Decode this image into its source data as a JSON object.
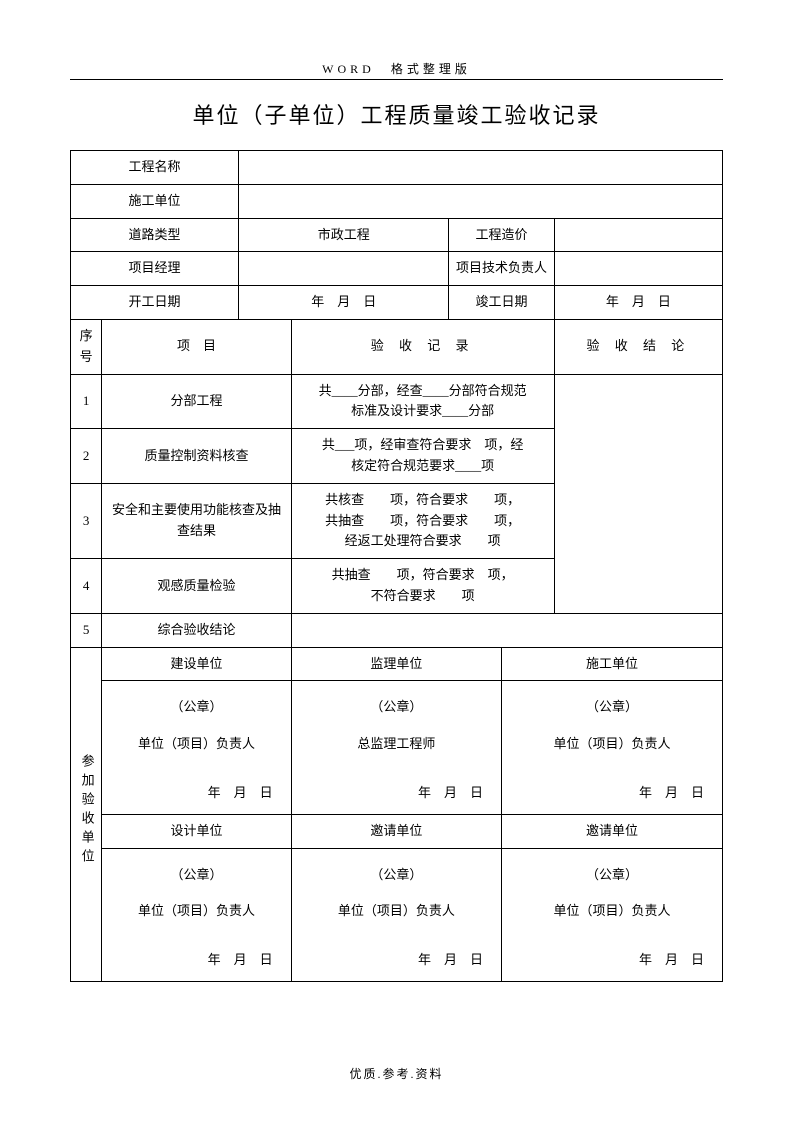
{
  "header": "WORD　格式整理版",
  "title": "单位（子单位）工程质量竣工验收记录",
  "labels": {
    "proj_name": "工程名称",
    "constr_unit": "施工单位",
    "road_type": "道路类型",
    "road_type_val": "市政工程",
    "proj_cost": "工程造价",
    "pm": "项目经理",
    "tech_lead": "项目技术负责人",
    "start_date": "开工日期",
    "end_date": "竣工日期",
    "date_ymd": "年　月　日",
    "seq": "序号",
    "item": "项　目",
    "record": "验 收 记 录",
    "conclusion": "验 收 结 论"
  },
  "rows": [
    {
      "n": "1",
      "item": "分部工程",
      "rec": "共____分部，经查____分部符合规范<br>标准及设计要求____分部"
    },
    {
      "n": "2",
      "item": "质量控制资料核查",
      "rec": "共___项，经审查符合要求　项，经<br>核定符合规范要求____项"
    },
    {
      "n": "3",
      "item": "安全和主要使用功能核查及抽查结果",
      "rec": "共核查　　项，符合要求　　项，<br>共抽查　　项，符合要求　　项，<br>经返工处理符合要求　　项"
    },
    {
      "n": "4",
      "item": "观感质量检验",
      "rec": "共抽查　　项，符合要求　项，<br>不符合要求　　项"
    },
    {
      "n": "5",
      "item": "综合验收结论",
      "rec": ""
    }
  ],
  "participation": "参加验收单位",
  "orgs_top": [
    "建设单位",
    "监理单位",
    "施工单位"
  ],
  "orgs_bottom": [
    "设计单位",
    "邀请单位",
    "邀请单位"
  ],
  "seal": "（公章）",
  "role_default": "单位（项目）负责人",
  "role_supervisor": "总监理工程师",
  "footer": "优质.参考.资料"
}
